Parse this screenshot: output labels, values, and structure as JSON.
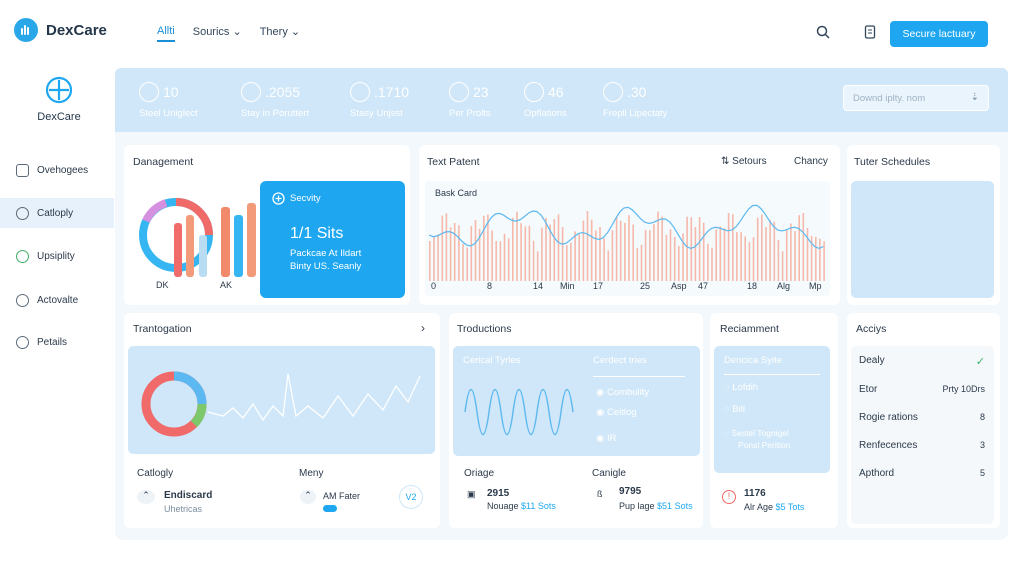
{
  "app": {
    "name": "DexCare"
  },
  "topnav": [
    "Allti",
    "Sourics",
    "Thery"
  ],
  "cta_label": "Secure lactuary",
  "sidebar": {
    "brand": "DexCare",
    "items": [
      {
        "label": "Ovehogees",
        "icon": "calendar-icon"
      },
      {
        "label": "Catloply",
        "icon": "list-icon"
      },
      {
        "label": "Upsiplity",
        "icon": "check-circle-icon"
      },
      {
        "label": "Actovalte",
        "icon": "clock-icon"
      },
      {
        "label": "Petails",
        "icon": "history-icon"
      }
    ]
  },
  "stats": [
    {
      "value": "10",
      "label": "Steel Uniglect"
    },
    {
      "value": ".2055",
      "label": "Stay in Poruttert"
    },
    {
      "value": ".1710",
      "label": "Stasy Unjsst"
    },
    {
      "value": "23",
      "label": "Per Prolts"
    },
    {
      "value": "46",
      "label": "Opflations"
    },
    {
      "value": ".30",
      "label": "Frepll Lipectaty"
    }
  ],
  "download_placeholder": "Downd iplty. nom",
  "management": {
    "title": "Danagement",
    "labels": [
      "DK",
      "AK"
    ],
    "blue_card": {
      "header": "Secvity",
      "big": "1/1 Sits",
      "line1": "Packcae At Ildart",
      "line2": "Binty US. Seanly"
    }
  },
  "text_patent": {
    "title": "Text Patent",
    "setours_label": "Setours",
    "chancy_label": "Chancy",
    "chart_header": "Bask Card",
    "ticks": [
      "0",
      "8",
      "14",
      "Min",
      "17",
      "25",
      "Asp",
      "47",
      "18",
      "Alg",
      "Mp"
    ]
  },
  "tuter": {
    "title": "Tuter Schedules"
  },
  "trantogation": {
    "title": "Trantogation",
    "col1_title": "Catlogly",
    "col2_title": "Meny",
    "item1_name": "Endiscard",
    "item1_sub": "Uhetricas",
    "item2_name": "AM Fater",
    "badge": "V2"
  },
  "troductions": {
    "title": "Troductions",
    "panel_left": "Cerical Tyrles",
    "panel_right": "Cerdect tries",
    "list": [
      "Combulity",
      "Ceitlog",
      "IR"
    ],
    "stat1_title": "Oriage",
    "stat1_value": "2915",
    "stat1_label": "Nouage",
    "stat1_blue": "$11 Sots",
    "stat2_title": "Canigle",
    "stat2_value": "9795",
    "stat2_label": "Pup lage",
    "stat2_blue": "$51 Sots"
  },
  "reciamment": {
    "title": "Reciamment",
    "panel_title": "Dencica Syite",
    "list": [
      "Lofdih",
      "Bill",
      "Sestel Tognigel",
      "Ponsl Perition"
    ],
    "stat_value": "1176",
    "stat_label": "Alr Age",
    "stat_blue": "$5 Tots"
  },
  "acciys": {
    "title": "Acciys",
    "rows": [
      {
        "label": "Dealy",
        "value": "✓"
      },
      {
        "label": "Etor",
        "value": "Prty 10Drs"
      },
      {
        "label": "Rogie rations",
        "value": "8"
      },
      {
        "label": "Renfecences",
        "value": "3"
      },
      {
        "label": "Apthord",
        "value": "5"
      }
    ]
  },
  "colors": {
    "accent": "#1ea7f0",
    "band": "#cfe7f8",
    "panel": "#cfe7f8"
  }
}
